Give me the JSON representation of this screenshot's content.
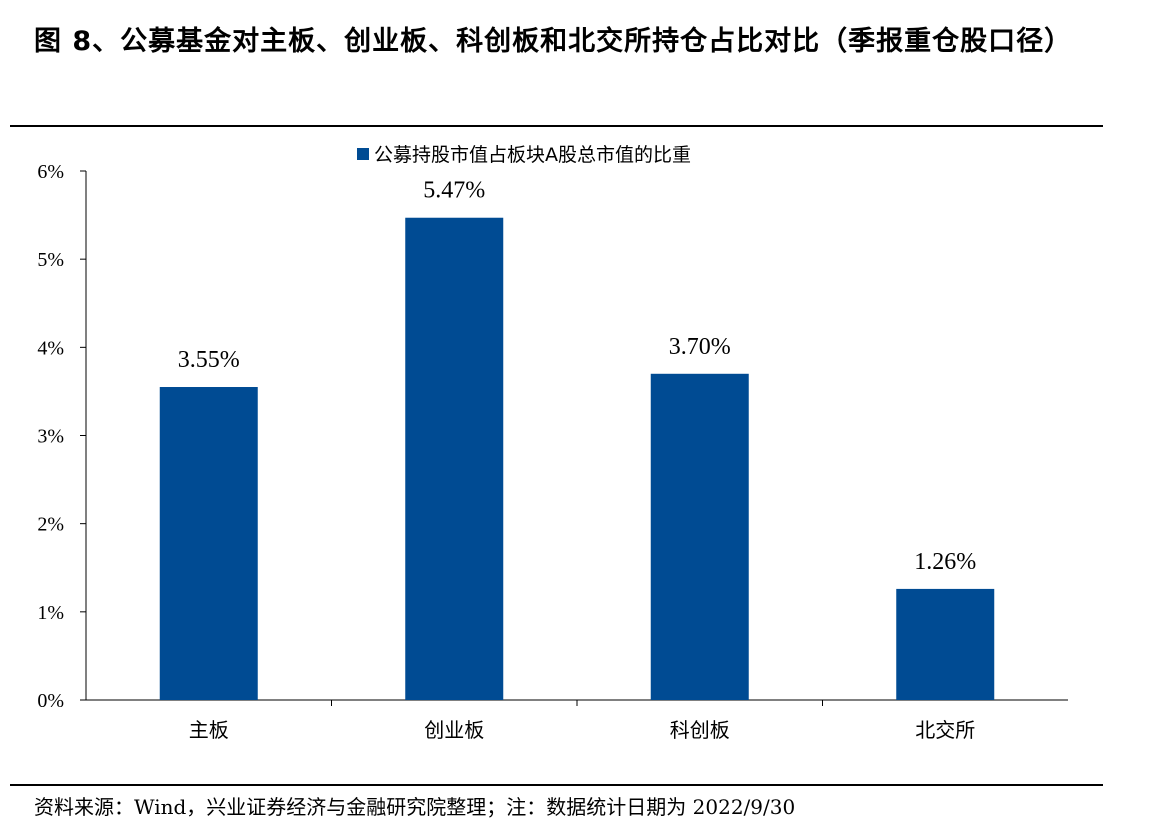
{
  "figure": {
    "title": "图 8、公募基金对主板、创业板、科创板和北交所持仓占比对比（季报重仓股口径）",
    "source": "资料来源：Wind，兴业证券经济与金融研究院整理；注：数据统计日期为 2022/9/30"
  },
  "chart_data": {
    "type": "bar",
    "categories": [
      "主板",
      "创业板",
      "科创板",
      "北交所"
    ],
    "series": [
      {
        "name": "公募持股市值占板块A股总市值的比重",
        "values": [
          3.55,
          5.47,
          3.7,
          1.26
        ],
        "color": "#004B93"
      }
    ],
    "data_labels": [
      "3.55%",
      "5.47%",
      "3.70%",
      "1.26%"
    ],
    "y_ticks": [
      "0%",
      "1%",
      "2%",
      "3%",
      "4%",
      "5%",
      "6%"
    ],
    "ylim": [
      0,
      6
    ],
    "unit": "%",
    "grid": false,
    "legend_position": "top-center",
    "title": "",
    "xlabel": "",
    "ylabel": ""
  }
}
